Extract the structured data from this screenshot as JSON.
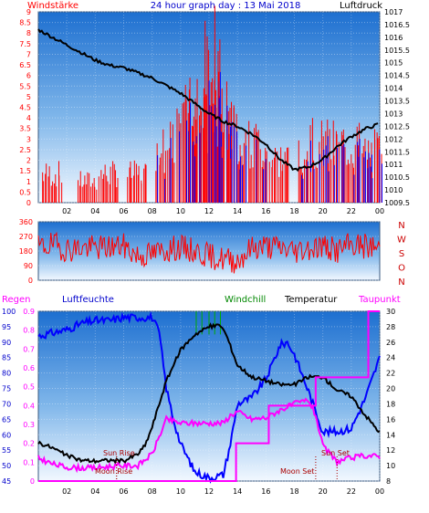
{
  "header": {
    "left_title": "Windstärke",
    "center_title": "24 hour graph day : 13 Mai 2018",
    "right_title": "Luftdruck"
  },
  "bottom_header": {
    "regen": "Regen",
    "luftfeuchte": "Luftfeuchte",
    "windchill": "Windchill",
    "temperatur": "Temperatur",
    "taupunkt": "Taupunkt"
  },
  "annotations": {
    "sun_rise": "Sun Rise",
    "moon_rise": "Moon Rise",
    "sun_set": "Sun Set",
    "moon_set": "Moon Set"
  },
  "colors": {
    "wind_speed": "#ff0000",
    "gust": "#0000ff",
    "pressure": "#000000",
    "direction": "#ff0000",
    "humidity": "#0000ff",
    "temperature": "#000000",
    "dewpoint": "#ff00ff",
    "windchill": "#00aa00",
    "rain": "#ff00ff",
    "sky_top": "#1e73d2",
    "sky_bottom": "#f0f8ff"
  },
  "chart_data": [
    {
      "type": "line",
      "title": "24 hour graph day : 13 Mai 2018",
      "x_ticks": [
        "02",
        "04",
        "06",
        "08",
        "10",
        "12",
        "14",
        "16",
        "18",
        "20",
        "22",
        "00"
      ],
      "left_axis": {
        "label": "Windstärke",
        "ylim": [
          0,
          9
        ],
        "ticks": [
          "0",
          "0.5",
          "1",
          "1.5",
          "2",
          "2.5",
          "3",
          "3.5",
          "4",
          "4.5",
          "5",
          "5.5",
          "6",
          "6.5",
          "7",
          "7.5",
          "8",
          "8.5",
          "9"
        ]
      },
      "right_axis": {
        "label": "Luftdruck",
        "ylim": [
          1009.5,
          1017
        ],
        "ticks": [
          "1009.5",
          "1010",
          "1010.5",
          "1011",
          "1011.5",
          "1012",
          "1012.5",
          "1013",
          "1013.5",
          "1014",
          "1014.5",
          "1015",
          "1015.5",
          "1016",
          "1016.5",
          "1017"
        ]
      },
      "series": [
        {
          "name": "Luftdruck",
          "axis": "right",
          "x": [
            0,
            1,
            2,
            3,
            4,
            5,
            6,
            7,
            8,
            9,
            10,
            11,
            12,
            13,
            14,
            15,
            16,
            17,
            18,
            19,
            20,
            21,
            22,
            23,
            24
          ],
          "values": [
            1016.3,
            1016.0,
            1015.7,
            1015.4,
            1015.1,
            1014.9,
            1014.8,
            1014.6,
            1014.4,
            1014.1,
            1013.8,
            1013.4,
            1013.0,
            1012.7,
            1012.5,
            1012.2,
            1011.8,
            1011.2,
            1010.8,
            1010.9,
            1011.2,
            1011.7,
            1012.1,
            1012.4,
            1012.6
          ]
        }
      ],
      "wind_bursts": [
        {
          "hour": 1,
          "level": 2
        },
        {
          "hour": 3.5,
          "level": 1.5
        },
        {
          "hour": 5,
          "level": 2
        },
        {
          "hour": 7,
          "level": 2
        },
        {
          "hour": 9,
          "level": 4
        },
        {
          "hour": 10.5,
          "level": 6
        },
        {
          "hour": 11.5,
          "level": 7.5
        },
        {
          "hour": 12.3,
          "level": 9.5
        },
        {
          "hour": 13,
          "level": 6.5
        },
        {
          "hour": 14,
          "level": 5
        },
        {
          "hour": 15.5,
          "level": 4
        },
        {
          "hour": 17,
          "level": 3
        },
        {
          "hour": 19,
          "level": 4
        },
        {
          "hour": 20.5,
          "level": 4
        },
        {
          "hour": 22,
          "level": 4
        },
        {
          "hour": 23.5,
          "level": 3.5
        }
      ]
    },
    {
      "type": "line",
      "x_ticks": [
        "02",
        "04",
        "06",
        "08",
        "10",
        "12",
        "14",
        "16",
        "18",
        "20",
        "22",
        "00"
      ],
      "left_axis": {
        "ylim": [
          0,
          360
        ],
        "ticks": [
          "0",
          "90",
          "180",
          "270",
          "360"
        ]
      },
      "right_axis": {
        "ticks": [
          "N",
          "W",
          "S",
          "O",
          "N"
        ]
      },
      "series": [
        {
          "name": "direction",
          "x": [
            0,
            1,
            2,
            3,
            4,
            5,
            6,
            7,
            8,
            9,
            10,
            11,
            12,
            13,
            14,
            15,
            16,
            17,
            18,
            19,
            20,
            21,
            22,
            23,
            24
          ],
          "values": [
            200,
            220,
            190,
            200,
            200,
            205,
            210,
            150,
            160,
            190,
            200,
            180,
            150,
            130,
            120,
            200,
            210,
            200,
            180,
            200,
            210,
            180,
            220,
            210,
            200
          ]
        }
      ]
    },
    {
      "type": "line",
      "x_ticks": [
        "02",
        "04",
        "06",
        "08",
        "10",
        "12",
        "14",
        "16",
        "18",
        "20",
        "22",
        "00"
      ],
      "axes": {
        "rain": {
          "label": "Regen",
          "ylim": [
            0,
            0.9
          ],
          "ticks": [
            "0",
            "0.1",
            "0.2",
            "0.3",
            "0.4",
            "0.5",
            "0.6",
            "0.7",
            "0.8",
            "0.9"
          ]
        },
        "humidity": {
          "label": "Luftfeuchte",
          "ylim": [
            45,
            100
          ],
          "ticks": [
            "45",
            "50",
            "55",
            "60",
            "65",
            "70",
            "75",
            "80",
            "85",
            "90",
            "95",
            "100"
          ]
        },
        "temperature": {
          "label": "Temperatur",
          "ylim": [
            8,
            30
          ],
          "ticks": [
            "8",
            "10",
            "12",
            "14",
            "16",
            "18",
            "20",
            "22",
            "24",
            "26",
            "28",
            "30"
          ]
        }
      },
      "series": [
        {
          "name": "Luftfeuchte",
          "axis": "humidity",
          "x": [
            0,
            1,
            2,
            3,
            4,
            5,
            6,
            7,
            8,
            8.5,
            9,
            9.5,
            10,
            11,
            12,
            13,
            13.5,
            14,
            15,
            16,
            17,
            17.5,
            18,
            19,
            20,
            21,
            22,
            23,
            24
          ],
          "values": [
            92,
            93,
            94,
            96,
            97,
            97,
            98,
            98,
            98,
            93,
            75,
            65,
            57,
            48,
            46,
            47,
            57,
            70,
            72,
            78,
            89,
            90,
            86,
            74,
            61,
            61,
            62,
            72,
            85
          ]
        },
        {
          "name": "Temperatur",
          "axis": "temperature",
          "x": [
            0,
            1,
            2,
            3,
            4,
            5,
            6,
            7,
            7.5,
            8,
            8.5,
            9,
            10,
            11,
            12,
            12.8,
            13.2,
            14,
            15,
            16,
            17,
            18,
            19,
            20,
            21,
            22,
            23,
            24
          ],
          "values": [
            13,
            12.3,
            11.3,
            10.7,
            10.6,
            10.7,
            10.6,
            11.5,
            12.6,
            15,
            18,
            21,
            25,
            27,
            28,
            28.2,
            27,
            23,
            21.5,
            21,
            20.5,
            20.5,
            21.5,
            21.5,
            19.8,
            19,
            16.5,
            14.3
          ]
        },
        {
          "name": "Taupunkt",
          "axis": "temperature",
          "x": [
            0,
            1,
            2,
            3,
            4,
            5,
            6,
            7,
            8,
            9,
            10,
            11,
            12,
            13,
            13.5,
            14,
            15,
            16,
            17,
            18,
            19,
            19.5,
            20,
            21,
            22,
            23,
            24
          ],
          "values": [
            11,
            10.2,
            9.8,
            9.7,
            9.7,
            9.9,
            10,
            10,
            11.5,
            16,
            15.5,
            15.5,
            15.5,
            15.5,
            16.5,
            17,
            16,
            16.2,
            17.2,
            18,
            18.5,
            16.5,
            12.5,
            10.5,
            11,
            11.3,
            11.2
          ]
        },
        {
          "name": "Regen",
          "axis": "rain",
          "x": [
            0,
            13.9,
            13.9,
            16.2,
            16.2,
            19.5,
            19.5,
            23.2,
            23.2,
            24
          ],
          "values": [
            0,
            0,
            0.2,
            0.2,
            0.4,
            0.4,
            0.55,
            0.55,
            0.9,
            0.9
          ]
        }
      ],
      "events": [
        {
          "label": "Sun Rise",
          "hour": 5.5
        },
        {
          "label": "Moon Rise",
          "hour": 5.5
        },
        {
          "label": "Sun Set",
          "hour": 21
        },
        {
          "label": "Moon Set",
          "hour": 19.5
        }
      ]
    }
  ]
}
